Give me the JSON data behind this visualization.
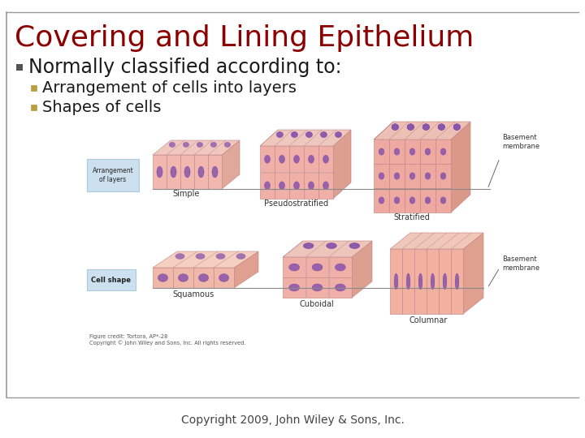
{
  "title": "Covering and Lining Epithelium",
  "title_color": "#8B0000",
  "title_fontsize": 26,
  "bullet1": "Normally classified according to:",
  "bullet1_color": "#1a1a1a",
  "bullet1_fontsize": 17,
  "subbullet1": "Arrangement of cells into layers",
  "subbullet2": "Shapes of cells",
  "subbullet_color": "#1a1a1a",
  "subbullet_fontsize": 14,
  "copyright": "Copyright 2009, John Wiley & Sons, Inc.",
  "copyright_fontsize": 10,
  "copyright_color": "#444444",
  "bg_color": "#ffffff",
  "line_color": "#999999",
  "bullet_sq_color": "#555555",
  "sub_sq_color": "#b8a040",
  "cell_pink": "#f0b8b0",
  "cell_pink2": "#e8a098",
  "nucleus_purple": "#8855aa",
  "cell_edge": "#c08080",
  "label_box1_bg": "#cce0f0",
  "label_box2_bg": "#cce0f0",
  "caption_color": "#555555"
}
